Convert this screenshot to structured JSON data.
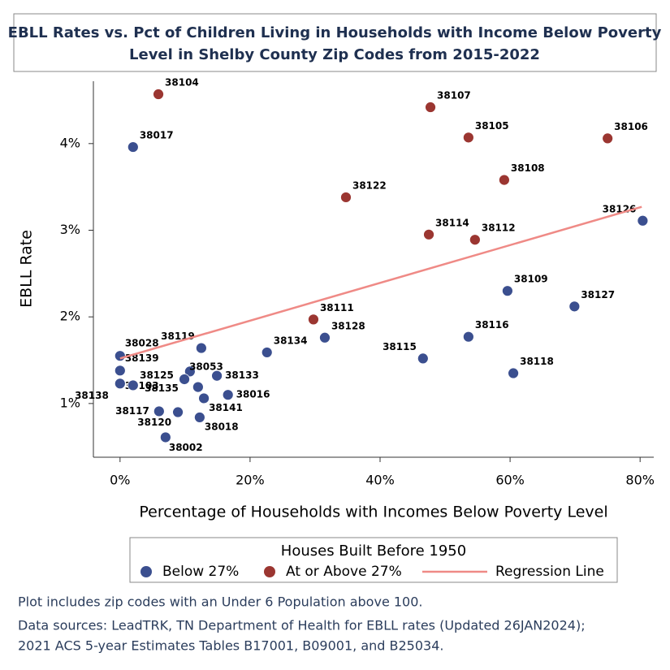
{
  "chart_data": {
    "type": "scatter",
    "title": [
      "EBLL Rates vs. Pct of Children Living in Households with Income Below Poverty",
      "Level in Shelby County Zip Codes from 2015-2022"
    ],
    "x_label": "Percentage of Households with Incomes Below Poverty Level",
    "y_label": "EBLL Rate",
    "xlim": [
      -4.1,
      82.1
    ],
    "ylim": [
      0.38,
      4.72
    ],
    "xticks": [
      {
        "value": 0,
        "label": "0%"
      },
      {
        "value": 20,
        "label": "20%"
      },
      {
        "value": 40,
        "label": "40%"
      },
      {
        "value": 60,
        "label": "60%"
      },
      {
        "value": 80,
        "label": "80%"
      }
    ],
    "yticks": [
      {
        "value": 1,
        "label": "1%"
      },
      {
        "value": 2,
        "label": "2%"
      },
      {
        "value": 3,
        "label": "3%"
      },
      {
        "value": 4,
        "label": "4%"
      }
    ],
    "legend_title": "Houses Built Before 1950",
    "series": [
      {
        "name": "Below 27%",
        "color": "#3b4f8f",
        "labels": [
          "38017",
          "38126",
          "38109",
          "38127",
          "38128",
          "38116",
          "38115",
          "38118",
          "38134",
          "38119",
          "38028",
          "38139",
          "38103",
          "38138",
          "38135",
          "38125",
          "38053",
          "38141",
          "38133",
          "38016",
          "38117",
          "38120",
          "38018",
          "38002"
        ],
        "x": [
          2.0,
          80.4,
          59.6,
          69.9,
          31.5,
          53.6,
          46.6,
          60.5,
          22.6,
          12.5,
          0,
          0,
          0,
          2.0,
          12.0,
          10.75,
          9.9,
          12.9,
          14.9,
          16.6,
          6.0,
          8.9,
          12.25,
          7.0
        ],
        "values": [
          3.96,
          3.11,
          2.3,
          2.12,
          1.76,
          1.77,
          1.52,
          1.35,
          1.59,
          1.64,
          1.55,
          1.38,
          1.23,
          1.21,
          1.19,
          1.37,
          1.28,
          1.06,
          1.32,
          1.1,
          0.91,
          0.9,
          0.84,
          0.61
        ]
      },
      {
        "name": "At or Above 27%",
        "color": "#9b3631",
        "labels": [
          "38104",
          "38107",
          "38105",
          "38106",
          "38108",
          "38122",
          "38114",
          "38112",
          "38111"
        ],
        "x": [
          5.9,
          47.75,
          53.6,
          75.0,
          59.1,
          34.75,
          47.5,
          54.6,
          29.75
        ],
        "values": [
          4.57,
          4.42,
          4.07,
          4.06,
          3.58,
          3.38,
          2.95,
          2.89,
          1.97
        ]
      },
      {
        "name": "Regression Line",
        "color": "#ef8a86",
        "line": true,
        "x": [
          0,
          80.25
        ],
        "values": [
          1.52,
          3.27
        ]
      }
    ],
    "notes": [
      "Plot includes zip codes with an Under 6 Population above 100.",
      "Data sources: LeadTRK, TN Department of Health for EBLL rates (Updated  26JAN2024);",
      "2021 ACS 5-year Estimates Tables B17001, B09001, and B25034."
    ]
  }
}
